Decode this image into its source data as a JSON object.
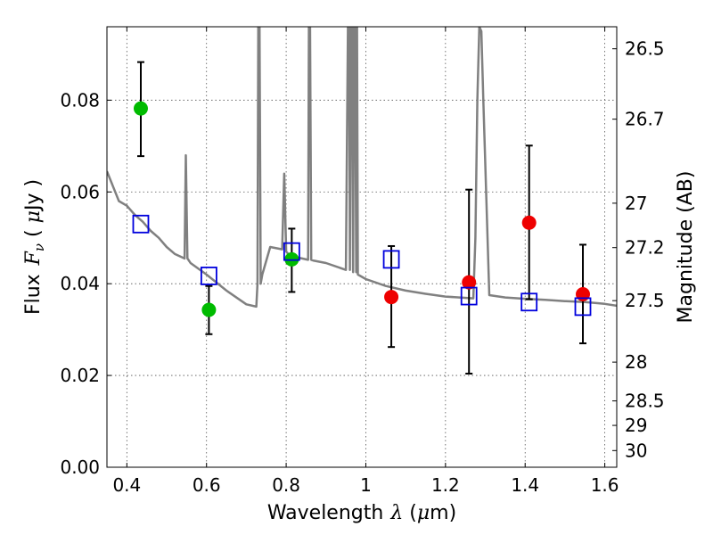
{
  "chart_data": {
    "type": "scatter",
    "xlabel_text": "Wavelength",
    "xlabel_symbol": "λ",
    "xlabel_unit_open": " (",
    "xlabel_unit_mu": "μ",
    "xlabel_unit_close": "m)",
    "ylabel_text": "Flux",
    "ylabel_symbol": "F",
    "ylabel_sub": "ν",
    "ylabel_unit_open": "  ( ",
    "ylabel_unit_mu": "μ",
    "ylabel_unit_close": "Jy )",
    "y2label": "Magnitude (AB)",
    "xlim": [
      0.35,
      1.63
    ],
    "ylim": [
      0.0,
      0.096
    ],
    "grid": true,
    "x_ticks": [
      0.4,
      0.6,
      0.8,
      1.0,
      1.2,
      1.4,
      1.6
    ],
    "x_tick_labels": [
      "0.4",
      "0.6",
      "0.8",
      "1",
      "1.2",
      "1.4",
      "1.6"
    ],
    "y_ticks": [
      0.0,
      0.02,
      0.04,
      0.06,
      0.08
    ],
    "y_tick_labels": [
      "0.00",
      "0.02",
      "0.04",
      "0.06",
      "0.08"
    ],
    "mag_ticks": [
      26.5,
      26.7,
      27,
      27.2,
      27.5,
      28,
      28.5,
      29,
      30
    ],
    "mag_tick_labels": [
      "26.5",
      "26.7",
      "27",
      "27.2",
      "27.5",
      "28",
      "28.5",
      "29",
      "30"
    ],
    "series": [
      {
        "name": "",
        "marker": "circle",
        "color": "#00bb00",
        "points": [
          {
            "x": 0.435,
            "y": 0.0782,
            "yerr_lo": 0.0678,
            "yerr_hi": 0.0883
          },
          {
            "x": 0.606,
            "y": 0.0343,
            "yerr_lo": 0.029,
            "yerr_hi": 0.0395
          },
          {
            "x": 0.814,
            "y": 0.0453,
            "yerr_lo": 0.0382,
            "yerr_hi": 0.052
          }
        ]
      },
      {
        "name": "",
        "marker": "circle",
        "color": "#ee0000",
        "points": [
          {
            "x": 1.064,
            "y": 0.0371,
            "yerr_lo": 0.0262,
            "yerr_hi": 0.0482
          },
          {
            "x": 1.259,
            "y": 0.0403,
            "yerr_lo": 0.0204,
            "yerr_hi": 0.0605
          },
          {
            "x": 1.41,
            "y": 0.0533,
            "yerr_lo": 0.0366,
            "yerr_hi": 0.0701
          },
          {
            "x": 1.545,
            "y": 0.0377,
            "yerr_lo": 0.027,
            "yerr_hi": 0.0485
          }
        ]
      },
      {
        "name": "",
        "marker": "square-open",
        "color": "#0000dd",
        "points": [
          {
            "x": 0.435,
            "y": 0.053
          },
          {
            "x": 0.606,
            "y": 0.0417
          },
          {
            "x": 0.814,
            "y": 0.047
          },
          {
            "x": 1.064,
            "y": 0.0453
          },
          {
            "x": 1.259,
            "y": 0.0373
          },
          {
            "x": 1.41,
            "y": 0.036
          },
          {
            "x": 1.545,
            "y": 0.035
          }
        ]
      }
    ],
    "spectrum": {
      "name": "",
      "color": "#808080",
      "x": [
        0.35,
        0.38,
        0.4,
        0.42,
        0.44,
        0.46,
        0.48,
        0.5,
        0.52,
        0.545,
        0.548,
        0.552,
        0.556,
        0.56,
        0.6,
        0.65,
        0.7,
        0.725,
        0.728,
        0.73,
        0.733,
        0.736,
        0.74,
        0.76,
        0.79,
        0.795,
        0.8,
        0.805,
        0.81,
        0.84,
        0.855,
        0.857,
        0.86,
        0.863,
        0.87,
        0.9,
        0.95,
        0.955,
        0.958,
        0.96,
        0.962,
        0.965,
        0.968,
        0.97,
        0.973,
        0.976,
        0.978,
        0.98,
        1.0,
        1.05,
        1.1,
        1.15,
        1.2,
        1.27,
        1.275,
        1.28,
        1.285,
        1.29,
        1.295,
        1.31,
        1.35,
        1.4,
        1.45,
        1.5,
        1.55,
        1.6,
        1.63
      ],
      "y": [
        0.0645,
        0.058,
        0.057,
        0.055,
        0.0535,
        0.0515,
        0.05,
        0.048,
        0.0465,
        0.0455,
        0.068,
        0.0455,
        0.045,
        0.0445,
        0.042,
        0.0385,
        0.0355,
        0.035,
        0.04,
        0.096,
        0.096,
        0.04,
        0.042,
        0.048,
        0.0475,
        0.064,
        0.047,
        0.0465,
        0.046,
        0.0455,
        0.0452,
        0.096,
        0.096,
        0.0452,
        0.045,
        0.0445,
        0.043,
        0.096,
        0.096,
        0.043,
        0.096,
        0.096,
        0.0425,
        0.096,
        0.096,
        0.0425,
        0.096,
        0.042,
        0.041,
        0.0395,
        0.0385,
        0.0378,
        0.0372,
        0.0368,
        0.05,
        0.08,
        0.096,
        0.095,
        0.08,
        0.0375,
        0.037,
        0.0367,
        0.0365,
        0.0362,
        0.036,
        0.0356,
        0.0352
      ]
    }
  }
}
